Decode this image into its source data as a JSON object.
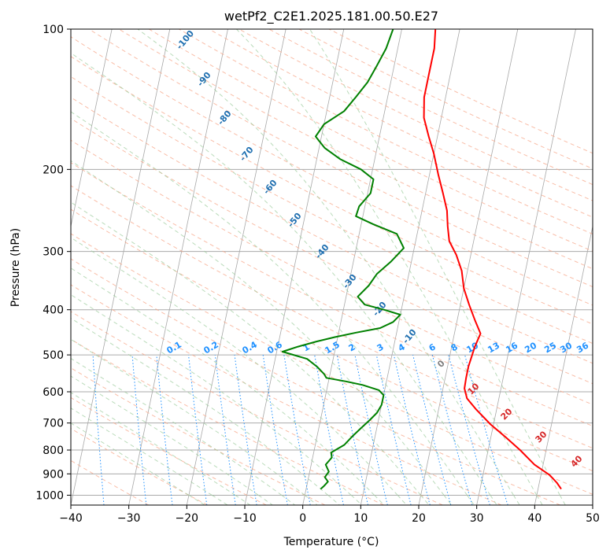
{
  "chart_data": {
    "type": "line",
    "title": "wetPf2_C2E1.2025.181.00.50.E27",
    "xlabel": "Temperature (°C)",
    "ylabel": "Pressure (hPa)",
    "xlim": [
      -40,
      50
    ],
    "ylim": [
      1050,
      100
    ],
    "y_scale": "log",
    "x_ticks": [
      -40,
      -30,
      -20,
      -10,
      0,
      10,
      20,
      30,
      40,
      50
    ],
    "y_ticks": [
      100,
      200,
      300,
      400,
      500,
      600,
      700,
      800,
      900,
      1000
    ],
    "grid": true,
    "skew_plot": true,
    "series": [
      {
        "color": "#ff0000",
        "points": [
          [
            44.0,
            970
          ],
          [
            43.0,
            940
          ],
          [
            41.5,
            905
          ],
          [
            38.5,
            860
          ],
          [
            35.5,
            800
          ],
          [
            32.5,
            750
          ],
          [
            29.5,
            705
          ],
          [
            26.5,
            655
          ],
          [
            24.5,
            620
          ],
          [
            23.7,
            590
          ],
          [
            23.6,
            560
          ],
          [
            23.6,
            530
          ],
          [
            24.0,
            480
          ],
          [
            24.5,
            450
          ],
          [
            23.0,
            420
          ],
          [
            21.5,
            390
          ],
          [
            20.0,
            360
          ],
          [
            19.0,
            330
          ],
          [
            17.5,
            305
          ],
          [
            15.8,
            285
          ],
          [
            15.0,
            265
          ],
          [
            14.3,
            245
          ],
          [
            13.0,
            225
          ],
          [
            11.5,
            205
          ],
          [
            10.0,
            185
          ],
          [
            8.5,
            170
          ],
          [
            7.0,
            155
          ],
          [
            6.3,
            140
          ],
          [
            6.3,
            125
          ],
          [
            6.3,
            110
          ],
          [
            5.8,
            100
          ]
        ]
      },
      {
        "color": "#008000",
        "points": [
          [
            2.5,
            970
          ],
          [
            3.0,
            955
          ],
          [
            3.5,
            935
          ],
          [
            2.8,
            915
          ],
          [
            3.3,
            890
          ],
          [
            2.5,
            860
          ],
          [
            3.3,
            830
          ],
          [
            3.0,
            810
          ],
          [
            5.0,
            780
          ],
          [
            6.0,
            750
          ],
          [
            7.2,
            720
          ],
          [
            8.5,
            690
          ],
          [
            9.5,
            665
          ],
          [
            10.0,
            640
          ],
          [
            10.0,
            610
          ],
          [
            9.0,
            595
          ],
          [
            6.0,
            580
          ],
          [
            3.0,
            570
          ],
          [
            -0.5,
            560
          ],
          [
            -1.0,
            550
          ],
          [
            -2.5,
            530
          ],
          [
            -4.5,
            510
          ],
          [
            -9.0,
            492
          ],
          [
            -6.5,
            480
          ],
          [
            -3.5,
            468
          ],
          [
            -0.5,
            458
          ],
          [
            3.0,
            448
          ],
          [
            7.0,
            438
          ],
          [
            9.0,
            425
          ],
          [
            10.0,
            410
          ],
          [
            7.0,
            400
          ],
          [
            3.5,
            390
          ],
          [
            2.0,
            375
          ],
          [
            3.5,
            355
          ],
          [
            4.5,
            335
          ],
          [
            6.5,
            315
          ],
          [
            8.2,
            295
          ],
          [
            6.5,
            275
          ],
          [
            2.0,
            262
          ],
          [
            -1.2,
            252
          ],
          [
            -1.0,
            240
          ],
          [
            0.5,
            225
          ],
          [
            0.5,
            210
          ],
          [
            -2.0,
            200
          ],
          [
            -6.0,
            190
          ],
          [
            -9.0,
            180
          ],
          [
            -11.0,
            170
          ],
          [
            -10.0,
            160
          ],
          [
            -7.0,
            150
          ],
          [
            -5.5,
            140
          ],
          [
            -4.0,
            130
          ],
          [
            -3.0,
            120
          ],
          [
            -2.0,
            110
          ],
          [
            -1.5,
            100
          ]
        ]
      }
    ],
    "mixing_ratio_labels": [
      "0.1",
      "0.2",
      "0.4",
      "0.6",
      "1",
      "1.5",
      "2",
      "3",
      "4",
      "6",
      "8",
      "10",
      "13",
      "16",
      "20",
      "25",
      "30",
      "36"
    ],
    "dry_adiabat_labels": [
      "-100",
      "-90",
      "-80",
      "-70",
      "-60",
      "-50",
      "-40",
      "-30",
      "-20",
      "-10"
    ],
    "moist_adiabat_labels": [
      "0",
      "10",
      "20",
      "30",
      "40"
    ]
  }
}
